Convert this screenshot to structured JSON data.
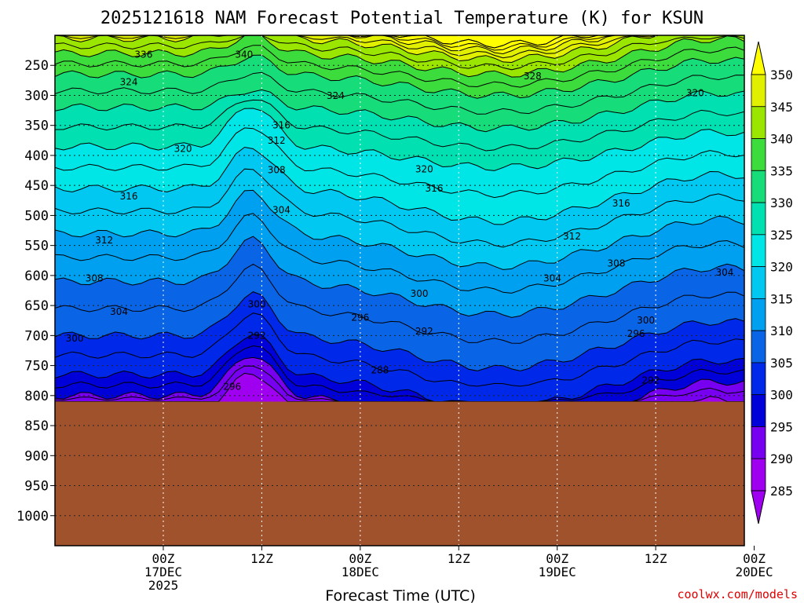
{
  "chart_data": {
    "type": "heatmap",
    "title": "2025121618 NAM Forecast Potential Temperature (K) for KSUN",
    "xlabel": "Forecast Time (UTC)",
    "ylabel": "",
    "credit": "coolwx.com/models",
    "y_axis": {
      "unit": "hPa",
      "range": [
        200,
        1050
      ],
      "ticks": [
        "250",
        "300",
        "350",
        "400",
        "450",
        "500",
        "550",
        "600",
        "650",
        "700",
        "750",
        "800",
        "850",
        "900",
        "950",
        "1000"
      ]
    },
    "x_axis": {
      "range_hours": [
        -5,
        65
      ],
      "ticks": [
        {
          "hour": 6,
          "line1": "00Z",
          "line2": "17DEC",
          "line3": "2025"
        },
        {
          "hour": 16,
          "line1": "12Z",
          "line2": "",
          "line3": ""
        },
        {
          "hour": 26,
          "line1": "00Z",
          "line2": "18DEC",
          "line3": ""
        },
        {
          "hour": 36,
          "line1": "12Z",
          "line2": "",
          "line3": ""
        },
        {
          "hour": 46,
          "line1": "00Z",
          "line2": "19DEC",
          "line3": ""
        },
        {
          "hour": 56,
          "line1": "12Z",
          "line2": "",
          "line3": ""
        },
        {
          "hour": 66,
          "line1": "00Z",
          "line2": "20DEC",
          "line3": ""
        }
      ]
    },
    "colorbar": {
      "levels": [
        "350",
        "345",
        "340",
        "335",
        "330",
        "325",
        "320",
        "315",
        "310",
        "305",
        "300",
        "295",
        "290",
        "285"
      ],
      "colors": [
        "#ffff00",
        "#e0f000",
        "#9ae600",
        "#3ddc3d",
        "#16dc7a",
        "#00e0b0",
        "#00e6e6",
        "#00c8f0",
        "#00a0f0",
        "#0a64e6",
        "#0028e8",
        "#0000d8",
        "#7800f0",
        "#a000f0"
      ]
    },
    "terrain": {
      "surface_pressure_hpa": 810,
      "color": "#a0522d"
    },
    "contour_labels": [
      {
        "text": "336",
        "hour": 4.0,
        "p": 232
      },
      {
        "text": "340",
        "hour": 14.2,
        "p": 232
      },
      {
        "text": "324",
        "hour": 2.5,
        "p": 278
      },
      {
        "text": "328",
        "hour": 43.5,
        "p": 268
      },
      {
        "text": "324",
        "hour": 23.5,
        "p": 301
      },
      {
        "text": "320",
        "hour": 60.0,
        "p": 296
      },
      {
        "text": "316",
        "hour": 18.0,
        "p": 350
      },
      {
        "text": "312",
        "hour": 17.5,
        "p": 375
      },
      {
        "text": "320",
        "hour": 8.0,
        "p": 389
      },
      {
        "text": "320",
        "hour": 32.5,
        "p": 423
      },
      {
        "text": "308",
        "hour": 17.5,
        "p": 424
      },
      {
        "text": "316",
        "hour": 33.5,
        "p": 455
      },
      {
        "text": "316",
        "hour": 2.5,
        "p": 468
      },
      {
        "text": "316",
        "hour": 52.5,
        "p": 480
      },
      {
        "text": "304",
        "hour": 18.0,
        "p": 491
      },
      {
        "text": "312",
        "hour": 0.0,
        "p": 541
      },
      {
        "text": "312",
        "hour": 47.5,
        "p": 535
      },
      {
        "text": "308",
        "hour": 52.0,
        "p": 580
      },
      {
        "text": "304",
        "hour": 63.0,
        "p": 595
      },
      {
        "text": "308",
        "hour": -1.0,
        "p": 605
      },
      {
        "text": "304",
        "hour": 45.5,
        "p": 605
      },
      {
        "text": "300",
        "hour": 32.0,
        "p": 630
      },
      {
        "text": "304",
        "hour": 1.5,
        "p": 660
      },
      {
        "text": "300",
        "hour": 15.5,
        "p": 648
      },
      {
        "text": "296",
        "hour": 26.0,
        "p": 670
      },
      {
        "text": "300",
        "hour": 55.0,
        "p": 675
      },
      {
        "text": "292",
        "hour": 15.5,
        "p": 700
      },
      {
        "text": "292",
        "hour": 32.5,
        "p": 693
      },
      {
        "text": "296",
        "hour": 54.0,
        "p": 697
      },
      {
        "text": "300",
        "hour": -3.0,
        "p": 705
      },
      {
        "text": "288",
        "hour": 28.0,
        "p": 758
      },
      {
        "text": "296",
        "hour": 13.0,
        "p": 785
      },
      {
        "text": "292",
        "hour": 55.5,
        "p": 775
      }
    ]
  }
}
